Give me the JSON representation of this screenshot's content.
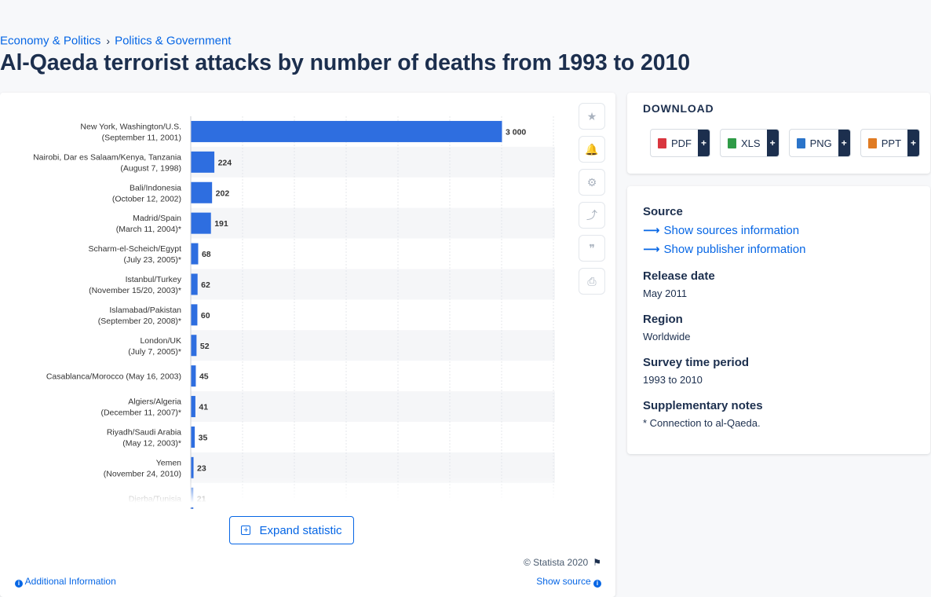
{
  "breadcrumb": {
    "items": [
      "Economy & Politics",
      "Politics & Government"
    ],
    "separator": "›"
  },
  "page_title": "Al-Qaeda terrorist attacks by number of deaths from 1993 to 2010",
  "colors": {
    "bar": "#2e6ee0",
    "link": "#0666e5",
    "text": "#1c2f4e"
  },
  "chart_data": {
    "type": "bar",
    "orientation": "horizontal",
    "categories": [
      [
        "New York, Washington/U.S.",
        "(September 11, 2001)"
      ],
      [
        "Nairobi, Dar es Salaam/Kenya, Tanzania",
        "(August 7, 1998)"
      ],
      [
        "Bali/Indonesia",
        "(October 12, 2002)"
      ],
      [
        "Madrid/Spain",
        "(March 11, 2004)*"
      ],
      [
        "Scharm-el-Scheich/Egypt",
        "(July 23, 2005)*"
      ],
      [
        "Istanbul/Turkey",
        "(November 15/20, 2003)*"
      ],
      [
        "Islamabad/Pakistan",
        "(September 20, 2008)*"
      ],
      [
        "London/UK",
        "(July 7, 2005)*"
      ],
      [
        "Casablanca/Morocco (May 16, 2003)"
      ],
      [
        "Algiers/Algeria",
        "(December 11, 2007)*"
      ],
      [
        "Riyadh/Saudi Arabia",
        "(May 12, 2003)*"
      ],
      [
        "Yemen",
        "(November 24, 2010)"
      ],
      [
        "Djerba/Tunisia"
      ]
    ],
    "values": [
      3000,
      224,
      202,
      191,
      68,
      62,
      60,
      52,
      45,
      41,
      35,
      23,
      21
    ],
    "value_labels": [
      "3 000",
      "224",
      "202",
      "191",
      "68",
      "62",
      "60",
      "52",
      "45",
      "41",
      "35",
      "23",
      "21"
    ],
    "xlim": [
      0,
      3500
    ],
    "grid": true
  },
  "chart_actions": [
    {
      "name": "favorite-icon",
      "glyph": "★"
    },
    {
      "name": "bell-icon",
      "glyph": "🔔"
    },
    {
      "name": "gear-icon",
      "glyph": "⚙"
    },
    {
      "name": "share-icon",
      "glyph": "⤴"
    },
    {
      "name": "quote-icon",
      "glyph": "❞"
    },
    {
      "name": "print-icon",
      "glyph": "⎙"
    }
  ],
  "expand_label": "Expand statistic",
  "copyright": "© Statista 2020",
  "additional_info": "Additional Information",
  "show_source": "Show source",
  "download": {
    "title": "DOWNLOAD",
    "formats": [
      {
        "label": "PDF",
        "color": "#d9363e"
      },
      {
        "label": "XLS",
        "color": "#2f9b47"
      },
      {
        "label": "PNG",
        "color": "#2b74c9"
      },
      {
        "label": "PPT",
        "color": "#e07b23"
      }
    ],
    "plus": "+"
  },
  "info": {
    "source_heading": "Source",
    "sources_link": "Show sources information",
    "publisher_link": "Show publisher information",
    "release_heading": "Release date",
    "release_value": "May 2011",
    "region_heading": "Region",
    "region_value": "Worldwide",
    "survey_heading": "Survey time period",
    "survey_value": "1993 to 2010",
    "notes_heading": "Supplementary notes",
    "notes_value": "* Connection to al-Qaeda."
  }
}
